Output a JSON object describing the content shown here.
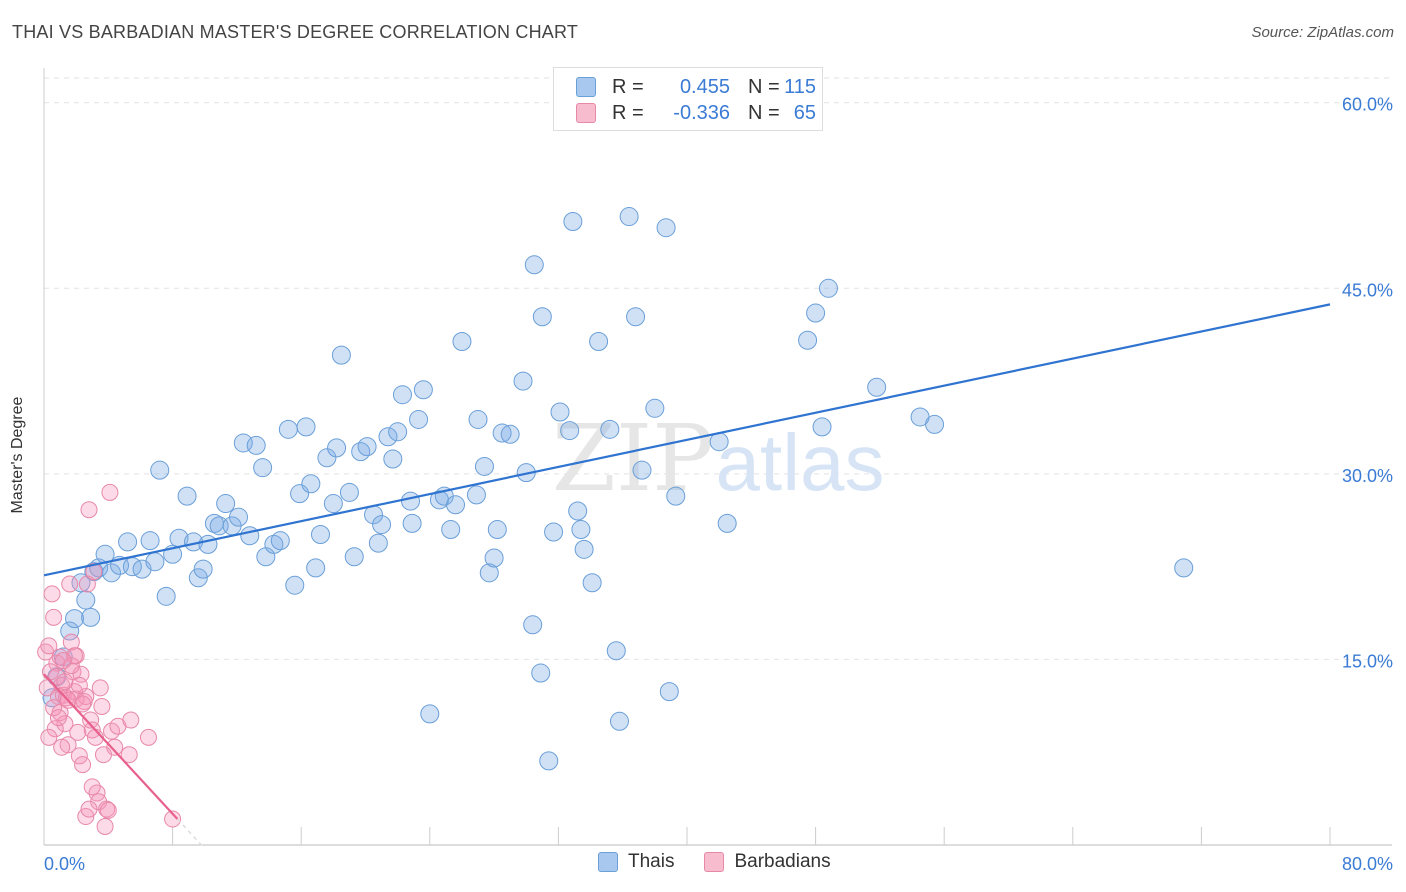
{
  "title": "THAI VS BARBADIAN MASTER'S DEGREE CORRELATION CHART",
  "source": "Source: ZipAtlas.com",
  "watermark": {
    "zip": "ZIP",
    "atlas": "atlas"
  },
  "legend": {
    "rows": [
      {
        "r_label": "R =",
        "r_value": "0.455",
        "n_label": "N =",
        "n_value": "115",
        "color": "#a8c8f0",
        "border": "#6a9fd8"
      },
      {
        "r_label": "R =",
        "r_value": "-0.336",
        "n_label": "N =",
        "n_value": "65",
        "color": "#f8bccf",
        "border": "#e888a8"
      }
    ]
  },
  "bottom_legend": {
    "thais": "Thais",
    "barbadians": "Barbadians"
  },
  "colors": {
    "thais_fill": "rgba(120,170,230,0.35)",
    "thais_stroke": "#6a9fd8",
    "thais_line": "#2f74d0",
    "barb_fill": "rgba(245,150,185,0.35)",
    "barb_stroke": "#e888a8",
    "barb_line": "#e8608c",
    "tick_label": "#3a7bd5",
    "grid": "#e2e2e2"
  },
  "chart_data": {
    "type": "scatter",
    "title": "THAI VS BARBADIAN MASTER'S DEGREE CORRELATION CHART",
    "xlabel": "",
    "ylabel": "Master's Degree",
    "xlim": [
      0,
      80
    ],
    "ylim": [
      0,
      62
    ],
    "x_tick_labels": [
      {
        "value": 0,
        "label": "0.0%"
      },
      {
        "value": 80,
        "label": "80.0%"
      }
    ],
    "y_tick_labels": [
      {
        "value": 15,
        "label": "15.0%"
      },
      {
        "value": 30,
        "label": "30.0%"
      },
      {
        "value": 45,
        "label": "45.0%"
      },
      {
        "value": 60,
        "label": "60.0%"
      }
    ],
    "series": [
      {
        "name": "Thais",
        "r": 0.455,
        "n": 115,
        "trend": {
          "x": [
            0,
            80
          ],
          "y": [
            21.8,
            43.7
          ]
        },
        "points": [
          [
            0.5,
            11.9
          ],
          [
            0.8,
            13.6
          ],
          [
            1.2,
            15.2
          ],
          [
            1.6,
            17.3
          ],
          [
            1.9,
            18.3
          ],
          [
            2.3,
            21.2
          ],
          [
            2.9,
            18.4
          ],
          [
            2.6,
            19.8
          ],
          [
            3.1,
            22.1
          ],
          [
            3.4,
            22.4
          ],
          [
            3.8,
            23.5
          ],
          [
            4.2,
            22.0
          ],
          [
            4.7,
            22.6
          ],
          [
            5.2,
            24.5
          ],
          [
            5.5,
            22.5
          ],
          [
            6.1,
            22.3
          ],
          [
            6.6,
            24.6
          ],
          [
            6.9,
            22.9
          ],
          [
            7.2,
            30.3
          ],
          [
            7.6,
            20.1
          ],
          [
            8.0,
            23.5
          ],
          [
            8.4,
            24.8
          ],
          [
            8.9,
            28.2
          ],
          [
            9.3,
            24.5
          ],
          [
            9.6,
            21.6
          ],
          [
            9.9,
            22.3
          ],
          [
            10.2,
            24.3
          ],
          [
            10.6,
            26.0
          ],
          [
            10.9,
            25.8
          ],
          [
            11.3,
            27.6
          ],
          [
            11.7,
            25.8
          ],
          [
            12.1,
            26.5
          ],
          [
            12.4,
            32.5
          ],
          [
            12.8,
            25.0
          ],
          [
            13.2,
            32.3
          ],
          [
            13.6,
            30.5
          ],
          [
            13.8,
            23.3
          ],
          [
            14.3,
            24.3
          ],
          [
            14.7,
            24.6
          ],
          [
            15.2,
            33.6
          ],
          [
            15.6,
            21.0
          ],
          [
            15.9,
            28.4
          ],
          [
            16.3,
            33.8
          ],
          [
            16.6,
            29.2
          ],
          [
            16.9,
            22.4
          ],
          [
            17.2,
            25.1
          ],
          [
            17.6,
            31.3
          ],
          [
            18.0,
            27.6
          ],
          [
            18.2,
            32.1
          ],
          [
            18.5,
            39.6
          ],
          [
            19.0,
            28.5
          ],
          [
            19.3,
            23.3
          ],
          [
            19.7,
            31.8
          ],
          [
            20.1,
            32.2
          ],
          [
            20.5,
            26.7
          ],
          [
            20.8,
            24.4
          ],
          [
            21.0,
            25.9
          ],
          [
            21.4,
            33.0
          ],
          [
            21.7,
            31.2
          ],
          [
            22.0,
            33.4
          ],
          [
            22.3,
            36.4
          ],
          [
            22.8,
            27.8
          ],
          [
            22.9,
            26.0
          ],
          [
            23.3,
            34.4
          ],
          [
            23.6,
            36.8
          ],
          [
            24.6,
            27.9
          ],
          [
            24.9,
            28.2
          ],
          [
            25.3,
            25.5
          ],
          [
            25.6,
            27.5
          ],
          [
            26.0,
            40.7
          ],
          [
            26.9,
            28.3
          ],
          [
            27.0,
            34.4
          ],
          [
            27.4,
            30.6
          ],
          [
            27.7,
            22.0
          ],
          [
            28.0,
            23.2
          ],
          [
            28.2,
            25.5
          ],
          [
            28.5,
            33.3
          ],
          [
            29.0,
            33.2
          ],
          [
            29.8,
            37.5
          ],
          [
            30.0,
            30.1
          ],
          [
            30.4,
            17.8
          ],
          [
            30.9,
            13.9
          ],
          [
            30.5,
            46.9
          ],
          [
            31.0,
            42.7
          ],
          [
            31.4,
            6.8
          ],
          [
            31.7,
            25.3
          ],
          [
            32.1,
            35.0
          ],
          [
            32.7,
            33.5
          ],
          [
            32.9,
            50.4
          ],
          [
            33.2,
            27.0
          ],
          [
            33.4,
            25.5
          ],
          [
            33.6,
            23.9
          ],
          [
            34.1,
            21.2
          ],
          [
            34.5,
            40.7
          ],
          [
            35.2,
            33.6
          ],
          [
            35.6,
            15.7
          ],
          [
            35.8,
            10.0
          ],
          [
            36.4,
            50.8
          ],
          [
            36.8,
            42.7
          ],
          [
            37.2,
            30.3
          ],
          [
            38.0,
            35.3
          ],
          [
            38.7,
            49.9
          ],
          [
            38.9,
            12.4
          ],
          [
            39.3,
            28.2
          ],
          [
            42.0,
            32.6
          ],
          [
            42.5,
            26.0
          ],
          [
            47.5,
            40.8
          ],
          [
            48.0,
            43.0
          ],
          [
            48.4,
            33.8
          ],
          [
            48.8,
            45.0
          ],
          [
            51.8,
            37.0
          ],
          [
            54.5,
            34.6
          ],
          [
            55.4,
            34.0
          ],
          [
            70.9,
            22.4
          ],
          [
            24.0,
            10.6
          ]
        ]
      },
      {
        "name": "Barbadians",
        "r": -0.336,
        "n": 65,
        "trend": {
          "x": [
            0,
            8.3
          ],
          "y": [
            13.8,
            2.1
          ]
        },
        "points": [
          [
            0.1,
            15.6
          ],
          [
            0.3,
            16.1
          ],
          [
            0.5,
            20.3
          ],
          [
            0.6,
            18.4
          ],
          [
            0.8,
            14.7
          ],
          [
            0.8,
            13.6
          ],
          [
            0.9,
            12.0
          ],
          [
            1.0,
            10.7
          ],
          [
            1.0,
            15.2
          ],
          [
            1.1,
            12.9
          ],
          [
            1.2,
            12.1
          ],
          [
            1.3,
            9.8
          ],
          [
            1.4,
            11.9
          ],
          [
            1.5,
            8.1
          ],
          [
            1.6,
            21.1
          ],
          [
            1.7,
            16.4
          ],
          [
            1.8,
            14.0
          ],
          [
            1.9,
            12.4
          ],
          [
            2.0,
            15.3
          ],
          [
            2.0,
            11.8
          ],
          [
            2.1,
            9.1
          ],
          [
            2.2,
            7.2
          ],
          [
            2.3,
            13.8
          ],
          [
            2.4,
            6.5
          ],
          [
            2.5,
            11.6
          ],
          [
            2.6,
            12.0
          ],
          [
            2.7,
            21.1
          ],
          [
            2.8,
            27.1
          ],
          [
            2.9,
            10.1
          ],
          [
            3.0,
            9.3
          ],
          [
            3.1,
            22.1
          ],
          [
            3.2,
            8.7
          ],
          [
            3.3,
            4.2
          ],
          [
            3.4,
            3.5
          ],
          [
            3.5,
            12.7
          ],
          [
            3.6,
            11.2
          ],
          [
            3.7,
            7.3
          ],
          [
            3.8,
            1.5
          ],
          [
            3.9,
            2.9
          ],
          [
            4.0,
            2.8
          ],
          [
            4.1,
            28.5
          ],
          [
            4.2,
            9.2
          ],
          [
            4.4,
            7.9
          ],
          [
            4.6,
            9.6
          ],
          [
            5.3,
            7.3
          ],
          [
            5.4,
            10.1
          ],
          [
            6.5,
            8.7
          ],
          [
            0.2,
            12.7
          ],
          [
            0.4,
            14.0
          ],
          [
            0.6,
            11.1
          ],
          [
            0.7,
            9.4
          ],
          [
            0.9,
            10.3
          ],
          [
            1.1,
            7.9
          ],
          [
            1.3,
            13.2
          ],
          [
            1.5,
            11.7
          ],
          [
            1.7,
            14.5
          ],
          [
            1.9,
            15.3
          ],
          [
            2.2,
            12.9
          ],
          [
            2.4,
            11.4
          ],
          [
            2.6,
            2.3
          ],
          [
            2.8,
            2.9
          ],
          [
            3.0,
            4.7
          ],
          [
            0.3,
            8.7
          ],
          [
            1.2,
            14.9
          ],
          [
            8.0,
            2.1
          ]
        ]
      }
    ]
  }
}
